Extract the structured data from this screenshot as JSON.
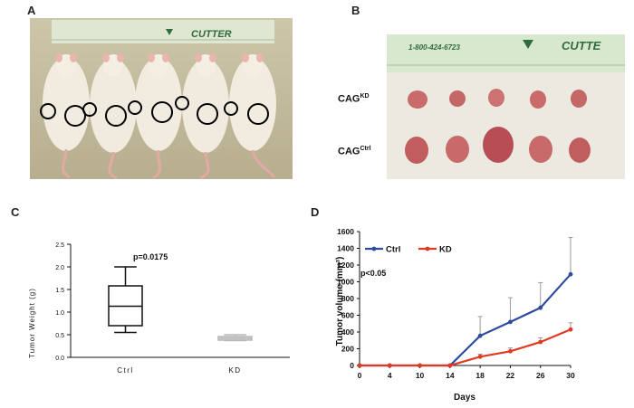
{
  "panels": {
    "a": {
      "letter": "A",
      "ruler_text": "CUTTER"
    },
    "b": {
      "letter": "B",
      "ruler_phone": "1-800-424-6723",
      "ruler_text": "CUTTE",
      "row_labels": [
        {
          "base": "CAG",
          "sup": "KD"
        },
        {
          "base": "CAG",
          "sup": "Ctrl"
        }
      ]
    },
    "c": {
      "letter": "C"
    },
    "d": {
      "letter": "D"
    }
  },
  "colors": {
    "ctrl": "#2e4da0",
    "kd": "#e03b22",
    "kd_box": "#b9b9b9",
    "circle": "#000000"
  },
  "chart_data": [
    {
      "type": "box",
      "ylabel": "Tumor Weight (g)",
      "categories": [
        "Ctrl",
        "KD"
      ],
      "ylim": [
        0,
        2.5
      ],
      "yticks": [
        "0.0",
        "0.5",
        "1.0",
        "1.5",
        "2.0",
        "2.5"
      ],
      "annotation": "p=0.0175",
      "boxes": [
        {
          "category": "Ctrl",
          "min": 0.55,
          "q1": 0.7,
          "median": 1.13,
          "q3": 1.58,
          "max": 2.0
        },
        {
          "category": "KD",
          "min": 0.37,
          "q1": 0.38,
          "median": 0.42,
          "q3": 0.46,
          "max": 0.5
        }
      ]
    },
    {
      "type": "line",
      "xlabel": "Days",
      "ylabel": "Tumor volume (mm³)",
      "x": [
        0,
        4,
        10,
        14,
        18,
        22,
        26,
        30
      ],
      "ylim": [
        0,
        1600
      ],
      "yticks": [
        "0",
        "200",
        "400",
        "600",
        "800",
        "1000",
        "1200",
        "1400",
        "1600"
      ],
      "annotation": "p<0.05",
      "legend": "top-left",
      "series": [
        {
          "name": "Ctrl",
          "values": [
            0,
            0,
            0,
            0,
            355,
            520,
            690,
            1090
          ],
          "error": [
            0,
            0,
            0,
            0,
            230,
            290,
            300,
            440
          ]
        },
        {
          "name": "KD",
          "values": [
            0,
            0,
            0,
            0,
            105,
            170,
            280,
            430
          ],
          "error": [
            0,
            0,
            0,
            0,
            30,
            40,
            50,
            80
          ]
        }
      ]
    }
  ]
}
